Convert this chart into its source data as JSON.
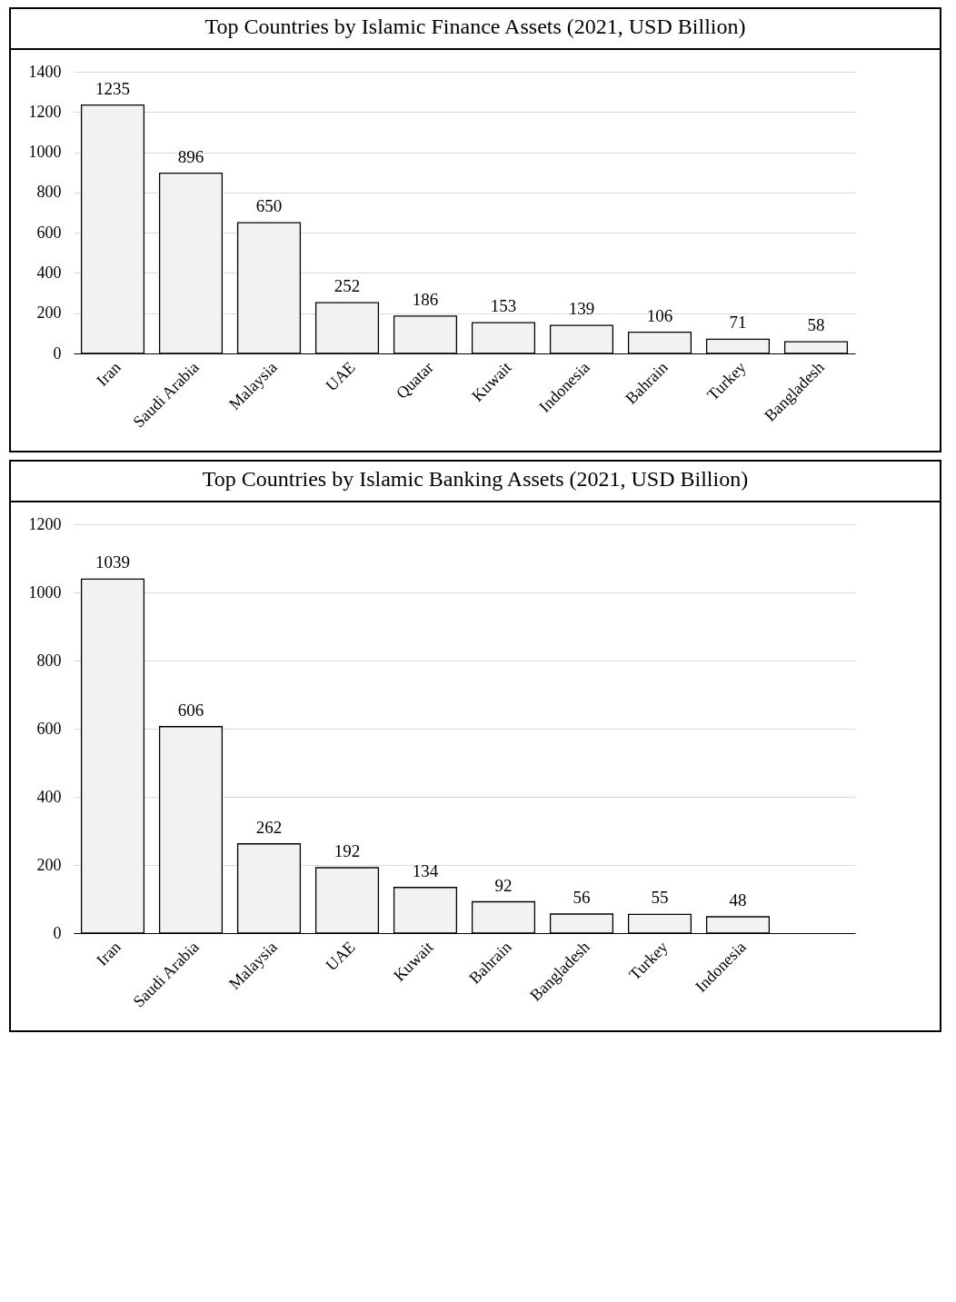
{
  "chart_data": [
    {
      "type": "bar",
      "title": "Top Countries by Islamic Finance Assets (2021, USD Billion)",
      "categories": [
        "Iran",
        "Saudi Arabia",
        "Malaysia",
        "UAE",
        "Quatar",
        "Kuwait",
        "Indonesia",
        "Bahrain",
        "Turkey",
        "Bangladesh"
      ],
      "values": [
        1235,
        896,
        650,
        252,
        186,
        153,
        139,
        106,
        71,
        58
      ],
      "color": "#f2f2f2",
      "ylim": [
        0,
        1400
      ],
      "yticks": [
        0,
        200,
        400,
        600,
        800,
        1000,
        1200,
        1400
      ],
      "grid": "y",
      "data_labels": true
    },
    {
      "type": "bar",
      "title": "Top Countries by Islamic Banking Assets (2021, USD Billion)",
      "categories": [
        "Iran",
        "Saudi Arabia",
        "Malaysia",
        "UAE",
        "Kuwait",
        "Bahrain",
        "Bangladesh",
        "Turkey",
        "Indonesia",
        null
      ],
      "values": [
        1039,
        606,
        262,
        192,
        134,
        92,
        56,
        55,
        48,
        null
      ],
      "color": "#f2f2f2",
      "ylim": [
        0,
        1200
      ],
      "yticks": [
        0,
        200,
        400,
        600,
        800,
        1000,
        1200
      ],
      "grid": "y",
      "data_labels": true
    }
  ]
}
